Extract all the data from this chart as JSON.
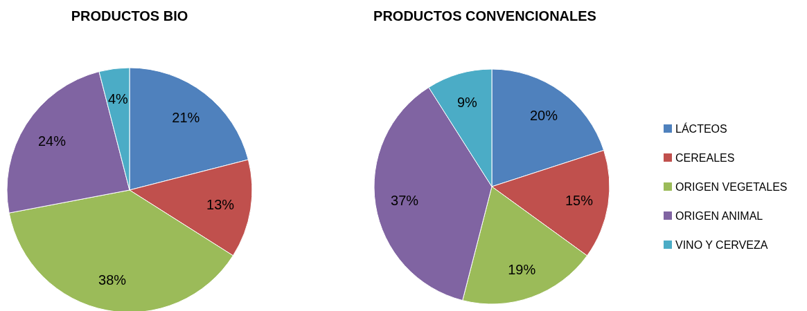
{
  "chart_data": [
    {
      "type": "pie",
      "title": "PRODUCTOS BIO",
      "categories": [
        null,
        null,
        null,
        null,
        null
      ],
      "values": [
        21,
        13,
        38,
        24,
        4
      ],
      "value_labels": [
        "21%",
        "13%",
        "38%",
        "24%",
        "4%"
      ],
      "colors": [
        "#4f81bd",
        "#c0504d",
        "#9bbb59",
        "#8064a2",
        "#4bacc6"
      ]
    },
    {
      "type": "pie",
      "title": "PRODUCTOS CONVENCIONALES",
      "categories": [
        "LÁCTEOS",
        "CEREALES",
        "ORIGEN VEGETALES",
        "ORIGEN ANIMAL",
        "VINO Y CERVEZA"
      ],
      "values": [
        20,
        15,
        19,
        37,
        9
      ],
      "value_labels": [
        "20%",
        "15%",
        "19%",
        "37%",
        "9%"
      ],
      "colors": [
        "#4f81bd",
        "#c0504d",
        "#9bbb59",
        "#8064a2",
        "#4bacc6"
      ],
      "legend": "right"
    }
  ]
}
